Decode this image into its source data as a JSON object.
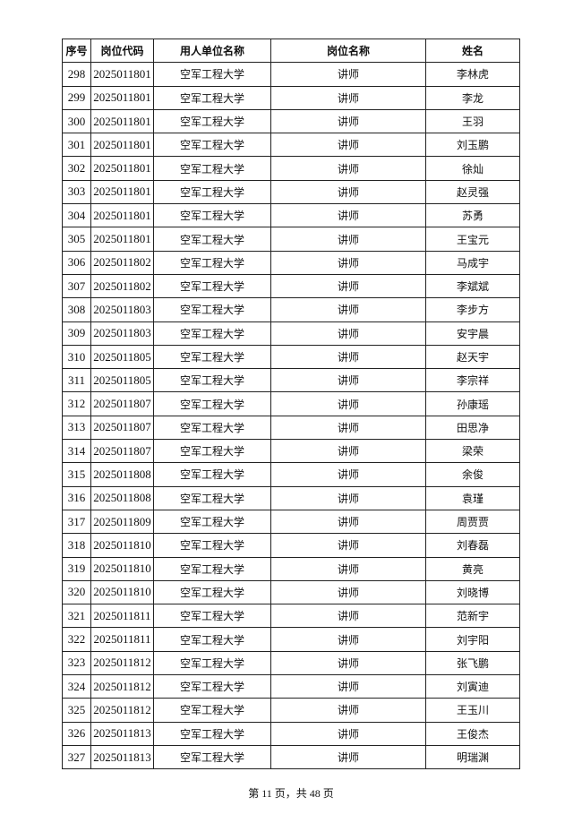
{
  "table": {
    "headers": [
      "序号",
      "岗位代码",
      "用人单位名称",
      "岗位名称",
      "姓名"
    ],
    "rows": [
      [
        "298",
        "2025011801",
        "空军工程大学",
        "讲师",
        "李林虎"
      ],
      [
        "299",
        "2025011801",
        "空军工程大学",
        "讲师",
        "李龙"
      ],
      [
        "300",
        "2025011801",
        "空军工程大学",
        "讲师",
        "王羽"
      ],
      [
        "301",
        "2025011801",
        "空军工程大学",
        "讲师",
        "刘玉鹏"
      ],
      [
        "302",
        "2025011801",
        "空军工程大学",
        "讲师",
        "徐灿"
      ],
      [
        "303",
        "2025011801",
        "空军工程大学",
        "讲师",
        "赵灵强"
      ],
      [
        "304",
        "2025011801",
        "空军工程大学",
        "讲师",
        "苏勇"
      ],
      [
        "305",
        "2025011801",
        "空军工程大学",
        "讲师",
        "王宝元"
      ],
      [
        "306",
        "2025011802",
        "空军工程大学",
        "讲师",
        "马成宇"
      ],
      [
        "307",
        "2025011802",
        "空军工程大学",
        "讲师",
        "李斌斌"
      ],
      [
        "308",
        "2025011803",
        "空军工程大学",
        "讲师",
        "李步方"
      ],
      [
        "309",
        "2025011803",
        "空军工程大学",
        "讲师",
        "安宇晨"
      ],
      [
        "310",
        "2025011805",
        "空军工程大学",
        "讲师",
        "赵天宇"
      ],
      [
        "311",
        "2025011805",
        "空军工程大学",
        "讲师",
        "李宗祥"
      ],
      [
        "312",
        "2025011807",
        "空军工程大学",
        "讲师",
        "孙康瑶"
      ],
      [
        "313",
        "2025011807",
        "空军工程大学",
        "讲师",
        "田思净"
      ],
      [
        "314",
        "2025011807",
        "空军工程大学",
        "讲师",
        "梁荣"
      ],
      [
        "315",
        "2025011808",
        "空军工程大学",
        "讲师",
        "余俊"
      ],
      [
        "316",
        "2025011808",
        "空军工程大学",
        "讲师",
        "袁瑾"
      ],
      [
        "317",
        "2025011809",
        "空军工程大学",
        "讲师",
        "周贾贾"
      ],
      [
        "318",
        "2025011810",
        "空军工程大学",
        "讲师",
        "刘春磊"
      ],
      [
        "319",
        "2025011810",
        "空军工程大学",
        "讲师",
        "黄亮"
      ],
      [
        "320",
        "2025011810",
        "空军工程大学",
        "讲师",
        "刘晓博"
      ],
      [
        "321",
        "2025011811",
        "空军工程大学",
        "讲师",
        "范新宇"
      ],
      [
        "322",
        "2025011811",
        "空军工程大学",
        "讲师",
        "刘宇阳"
      ],
      [
        "323",
        "2025011812",
        "空军工程大学",
        "讲师",
        "张飞鹏"
      ],
      [
        "324",
        "2025011812",
        "空军工程大学",
        "讲师",
        "刘寅迪"
      ],
      [
        "325",
        "2025011812",
        "空军工程大学",
        "讲师",
        "王玉川"
      ],
      [
        "326",
        "2025011813",
        "空军工程大学",
        "讲师",
        "王俊杰"
      ],
      [
        "327",
        "2025011813",
        "空军工程大学",
        "讲师",
        "明瑞渊"
      ]
    ]
  },
  "footer": {
    "page_label": "第 11 页，共 48 页"
  }
}
